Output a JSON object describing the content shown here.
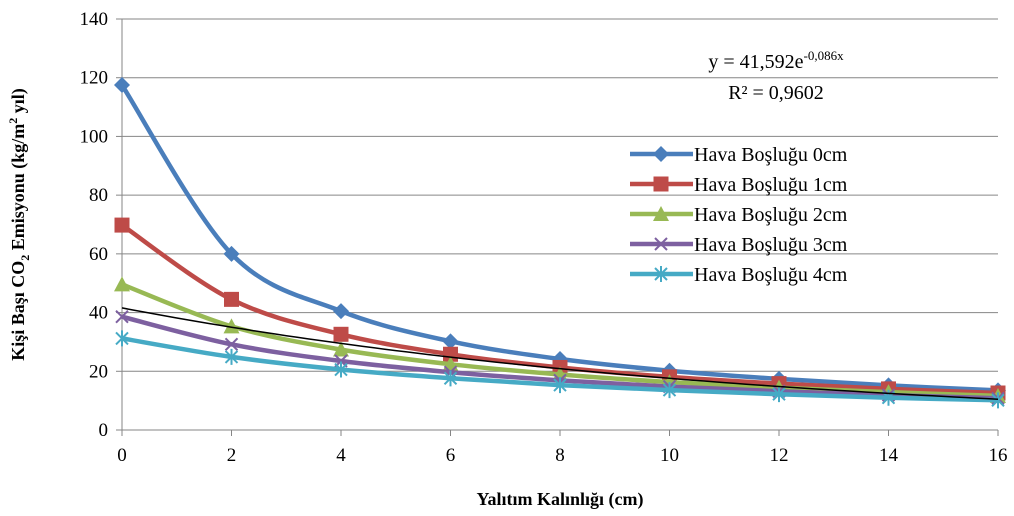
{
  "chart_data": {
    "type": "line",
    "xlabel": "Yalıtım Kalınlığı (cm)",
    "ylabel": "Kişi Başı CO2 Emisyonu (kg/m2 yıl)",
    "ylabel_parts": {
      "pre": "Kişi Başı CO",
      "sub": "2",
      "mid": " Emisyonu (kg/m",
      "sup": "2",
      "post": " yıl)"
    },
    "xlim": [
      0,
      16
    ],
    "ylim": [
      0,
      140
    ],
    "x_ticks": [
      "0",
      "2",
      "4",
      "6",
      "8",
      "10",
      "12",
      "14",
      "16"
    ],
    "y_ticks": [
      "0",
      "20",
      "40",
      "60",
      "80",
      "100",
      "120",
      "140"
    ],
    "grid": "horizontal",
    "legend_position": "right",
    "x": [
      0,
      2,
      4,
      6,
      8,
      10,
      12,
      14,
      16
    ],
    "series": [
      {
        "name": "Hava Boşluğu 0cm",
        "values": [
          117.5,
          60,
          40.5,
          30.2,
          24.2,
          20.2,
          17.4,
          15.2,
          13.5
        ],
        "color": "#4A7EBB",
        "marker": "diamond"
      },
      {
        "name": "Hava Boşluğu 1cm",
        "values": [
          69.8,
          44.5,
          32.6,
          25.8,
          21.3,
          18.1,
          15.8,
          14,
          12.6
        ],
        "color": "#BE4B48",
        "marker": "square"
      },
      {
        "name": "Hava Boşluğu 2cm",
        "values": [
          49.6,
          35.3,
          27.4,
          22.4,
          18.9,
          16.3,
          14.4,
          12.9,
          11.6
        ],
        "color": "#98B954",
        "marker": "triangle"
      },
      {
        "name": "Hava Boşluğu 3cm",
        "values": [
          38.6,
          29.2,
          23.5,
          19.7,
          16.9,
          14.8,
          13.2,
          11.9,
          10.8
        ],
        "color": "#7D60A0",
        "marker": "x"
      },
      {
        "name": "Hava Boşluğu 4cm",
        "values": [
          31.2,
          24.9,
          20.6,
          17.6,
          15.3,
          13.6,
          12.2,
          11,
          10.1
        ],
        "color": "#46AAC5",
        "marker": "star"
      }
    ],
    "trendline": {
      "type": "exponential",
      "a": 41.592,
      "b": -0.086,
      "color": "#000000",
      "equation": {
        "base": "y = 41,592e",
        "exponent": "-0,086x"
      },
      "r2": "R² = 0,9602"
    }
  }
}
